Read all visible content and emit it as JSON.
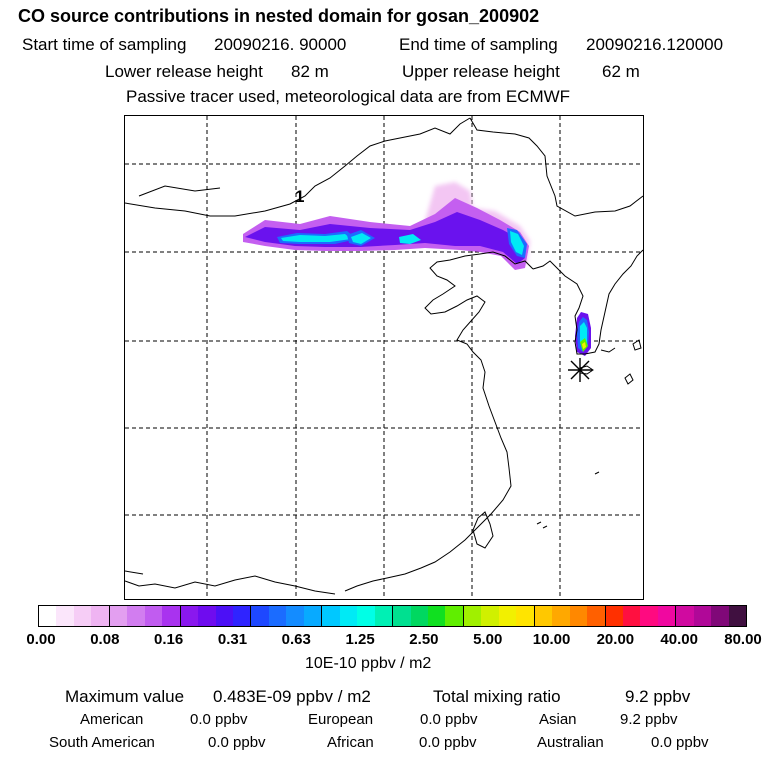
{
  "title": "CO  source contributions in nested domain for gosan_200902",
  "sampling": {
    "start_label": "Start time of sampling",
    "start_value": "20090216. 90000",
    "end_label": "End time of sampling",
    "end_value": "20090216.120000"
  },
  "release": {
    "lower_label": "Lower release height",
    "lower_value": "82 m",
    "upper_label": "Upper release height",
    "upper_value": "62 m"
  },
  "note": "Passive tracer used, meteorological data are from ECMWF",
  "map": {
    "marker_label": "1",
    "receptor_icon": "asterisk-marker-icon"
  },
  "colorbar": {
    "colors": [
      "#ffffff",
      "#fbe6fb",
      "#f6cdf6",
      "#efb4f2",
      "#e39ff0",
      "#d27df0",
      "#c15cf0",
      "#a933ef",
      "#8a18ee",
      "#6f0cef",
      "#4c10f6",
      "#2f24ff",
      "#1e48ff",
      "#1b6cff",
      "#148cff",
      "#08aaff",
      "#00c8ff",
      "#00eaf5",
      "#00ffe6",
      "#00f0b4",
      "#00e090",
      "#00d860",
      "#10e020",
      "#60ee00",
      "#a0f000",
      "#d0f000",
      "#f2f000",
      "#ffe400",
      "#ffc800",
      "#ffa800",
      "#ff8800",
      "#ff6000",
      "#ff3000",
      "#ff1040",
      "#ff0a80",
      "#f008a0",
      "#d00aa0",
      "#b00898",
      "#800878",
      "#401040"
    ],
    "tick_labels": [
      "0.00",
      "0.08",
      "0.16",
      "0.31",
      "0.63",
      "1.25",
      "2.50",
      "5.00",
      "10.00",
      "20.00",
      "40.00",
      "80.00"
    ],
    "unit": "10E-10 ppbv / m2"
  },
  "stats": {
    "max_label": "Maximum value",
    "max_value": "0.483E-09 ppbv / m2",
    "total_label": "Total mixing ratio",
    "total_value": "9.2 ppbv"
  },
  "sources": [
    {
      "name": "American",
      "value": "0.0 ppbv"
    },
    {
      "name": "European",
      "value": "0.0 ppbv"
    },
    {
      "name": "Asian",
      "value": "9.2 ppbv"
    },
    {
      "name": "South American",
      "value": "0.0 ppbv"
    },
    {
      "name": "African",
      "value": "0.0 ppbv"
    },
    {
      "name": "Australian",
      "value": "0.0 ppbv"
    }
  ]
}
